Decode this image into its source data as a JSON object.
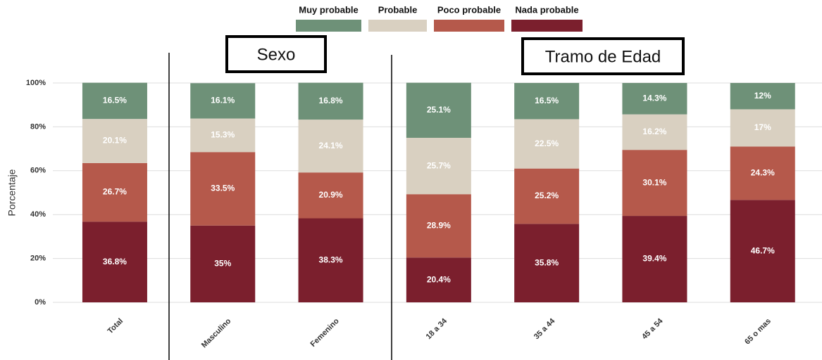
{
  "chart_data": {
    "type": "stacked_bar",
    "y_label": "Porcentaje",
    "annotations": [
      "Sexo",
      "Tramo de Edad"
    ],
    "categories": [
      "Total",
      "Masculino",
      "Femenino",
      "18 a 34",
      "35 a 44",
      "45 a 54",
      "65 o mas"
    ],
    "series": [
      {
        "name": "Muy probable",
        "color": "#6e9178",
        "values": [
          16.5,
          16.1,
          16.8,
          25.1,
          16.5,
          14.3,
          12
        ],
        "value_labels": [
          "16.5%",
          "16.1%",
          "16.8%",
          "25.1%",
          "16.5%",
          "14.3%",
          "12%"
        ]
      },
      {
        "name": "Probable",
        "color": "#d9d0c1",
        "values": [
          20.1,
          15.3,
          24.1,
          25.7,
          22.5,
          16.2,
          17
        ],
        "value_labels": [
          "20.1%",
          "15.3%",
          "24.1%",
          "25.7%",
          "22.5%",
          "16.2%",
          "17%"
        ]
      },
      {
        "name": "Poco probable",
        "color": "#b5594b",
        "values": [
          26.7,
          33.5,
          20.9,
          28.9,
          25.2,
          30.1,
          24.3
        ],
        "value_labels": [
          "26.7%",
          "33.5%",
          "20.9%",
          "28.9%",
          "25.2%",
          "30.1%",
          "24.3%"
        ]
      },
      {
        "name": "Nada probable",
        "color": "#7b1f2d",
        "values": [
          36.8,
          35,
          38.3,
          20.4,
          35.8,
          39.4,
          46.7
        ],
        "value_labels": [
          "36.8%",
          "35%",
          "38.3%",
          "20.4%",
          "35.8%",
          "39.4%",
          "46.7%"
        ]
      }
    ],
    "ylim": [
      0,
      100
    ],
    "yticks": [
      {
        "value": 0,
        "label": "0%"
      },
      {
        "value": 20,
        "label": "20%"
      },
      {
        "value": 40,
        "label": "40%"
      },
      {
        "value": 60,
        "label": "60%"
      },
      {
        "value": 80,
        "label": "80%"
      },
      {
        "value": 100,
        "label": "100%"
      }
    ],
    "grid": true,
    "legend": "top"
  }
}
